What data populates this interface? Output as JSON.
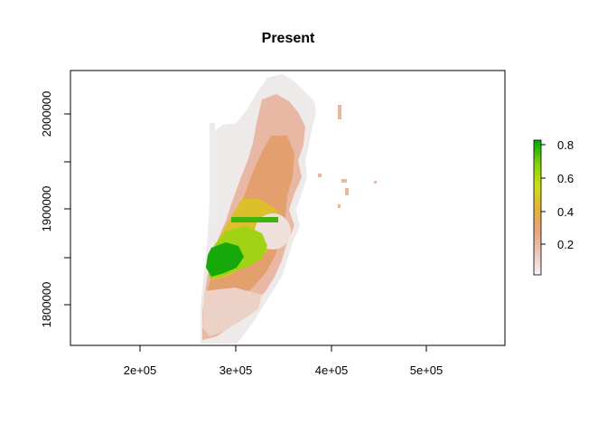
{
  "title": "Present",
  "x_ticks": [
    "2e+05",
    "3e+05",
    "4e+05",
    "5e+05"
  ],
  "y_ticks": [
    "1800000",
    "1900000",
    "2000000"
  ],
  "legend": {
    "ticks": [
      "0.2",
      "0.4",
      "0.6",
      "0.8"
    ],
    "colors": [
      "#f2f2f2",
      "#ecc3b2",
      "#e8a47c",
      "#e3b434",
      "#cce017",
      "#7ed10c",
      "#00a600"
    ]
  },
  "chart_data": {
    "type": "heatmap",
    "title": "Present",
    "xlabel": "",
    "ylabel": "",
    "xlim": [
      130000,
      580000
    ],
    "ylim": [
      1757000,
      2045000
    ],
    "value_range": [
      0,
      0.83
    ],
    "x_ticks": [
      200000,
      300000,
      400000,
      500000
    ],
    "y_ticks": [
      1800000,
      1900000,
      2000000
    ],
    "legend_position": "right"
  }
}
